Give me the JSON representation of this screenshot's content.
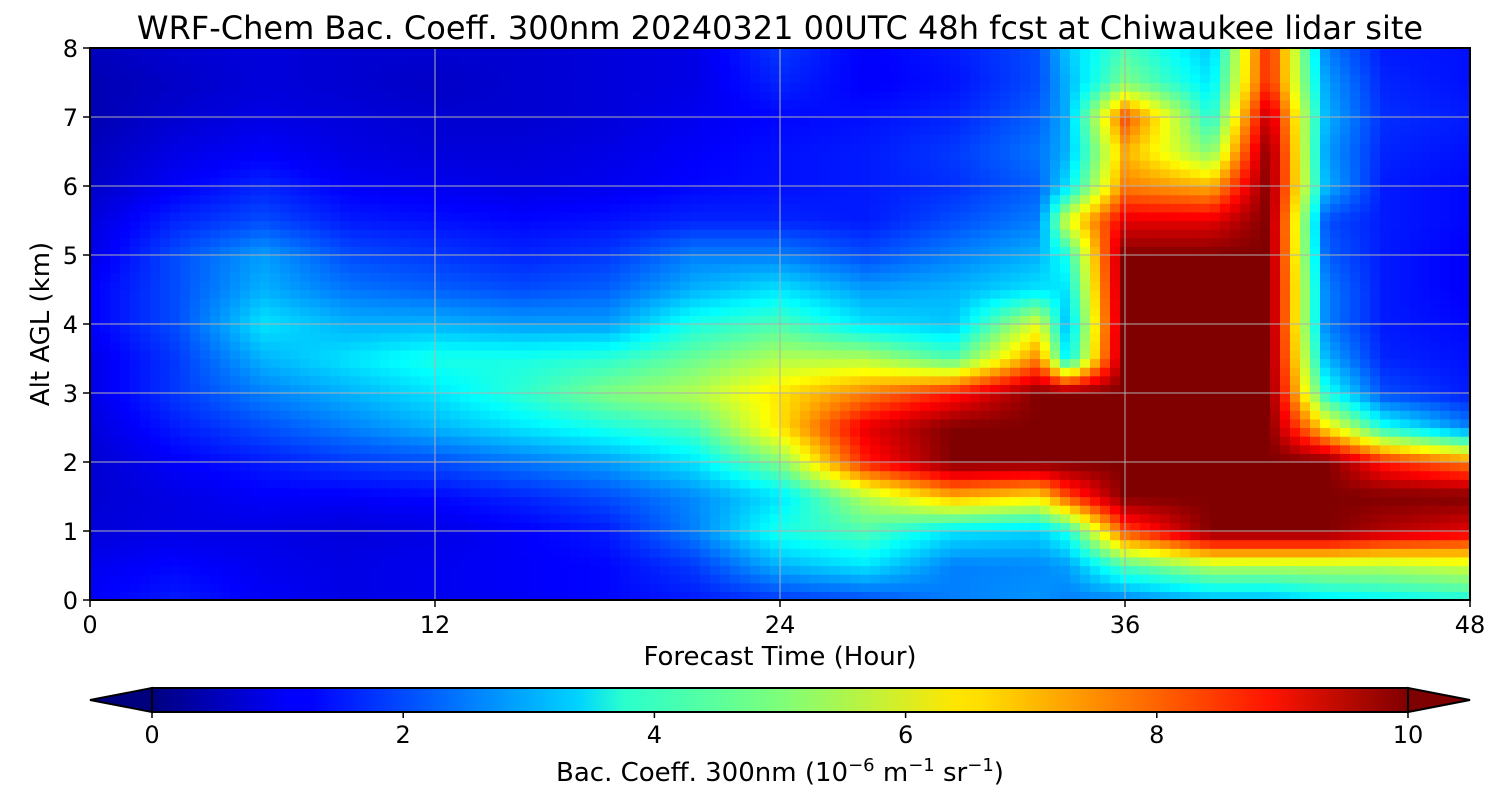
{
  "chart_data": {
    "type": "heatmap",
    "title": "WRF-Chem Bac. Coeff. 300nm  20240321 00UTC 48h fcst at Chiwaukee lidar site",
    "xlabel": "Forecast Time (Hour)",
    "ylabel": "Alt AGL (km)",
    "xlim": [
      0,
      48
    ],
    "ylim": [
      0,
      8
    ],
    "x_ticks": [
      "0",
      "12",
      "24",
      "36",
      "48"
    ],
    "y_ticks": [
      "0",
      "1",
      "2",
      "3",
      "4",
      "5",
      "6",
      "7",
      "8"
    ],
    "grid": true,
    "colorbar": {
      "label_prefix": "Bac. Coeff. 300nm  (10",
      "label_exp1": "−6",
      "label_mid": " m",
      "label_exp2": "−1",
      "label_mid2": " sr",
      "label_exp3": "−1",
      "label_suffix": ")",
      "ticks": [
        "0",
        "2",
        "4",
        "6",
        "8",
        "10"
      ],
      "range": [
        0,
        10
      ],
      "extend": "both",
      "colormap": "jet"
    },
    "x": [
      0,
      3,
      6,
      9,
      12,
      15,
      18,
      21,
      24,
      27,
      30,
      33,
      34,
      36,
      39,
      41,
      43,
      45,
      48
    ],
    "y": [
      0,
      0.5,
      1,
      1.5,
      2,
      2.5,
      3,
      3.5,
      4,
      4.5,
      5,
      5.5,
      6,
      6.5,
      7,
      7.5,
      8
    ],
    "z": [
      [
        1.2,
        1.5,
        1.2,
        1.0,
        1.1,
        1.2,
        1.3,
        1.5,
        1.8,
        2.0,
        2.5,
        2.7,
        2.5,
        2.5,
        3.0,
        3.0,
        3.5,
        3.7,
        4.0
      ],
      [
        1.1,
        1.3,
        1.1,
        1.0,
        1.1,
        1.2,
        1.3,
        1.8,
        3.0,
        3.5,
        2.5,
        2.6,
        2.8,
        4.5,
        5.5,
        5.5,
        5.5,
        5.5,
        5.8
      ],
      [
        0.9,
        1.0,
        1.0,
        0.9,
        1.0,
        1.2,
        1.5,
        2.5,
        4.0,
        4.5,
        3.5,
        3.3,
        4.0,
        8.0,
        10.0,
        10.0,
        10.0,
        9.5,
        9.0
      ],
      [
        0.8,
        1.0,
        1.2,
        1.2,
        1.3,
        1.6,
        2.0,
        2.6,
        3.5,
        5.5,
        7.0,
        6.5,
        8.0,
        10.0,
        10.0,
        10.0,
        10.0,
        10.0,
        10.0
      ],
      [
        0.8,
        1.2,
        1.5,
        1.8,
        2.0,
        2.4,
        2.8,
        3.5,
        5.0,
        8.5,
        10.0,
        10.0,
        10.0,
        10.0,
        10.0,
        10.0,
        10.0,
        8.5,
        7.5
      ],
      [
        0.9,
        1.5,
        2.0,
        2.5,
        3.0,
        3.5,
        4.0,
        4.5,
        6.5,
        9.0,
        10.0,
        10.0,
        10.0,
        10.0,
        10.0,
        10.0,
        6.5,
        4.0,
        2.5
      ],
      [
        1.0,
        1.8,
        2.5,
        3.0,
        3.5,
        4.2,
        5.0,
        5.5,
        6.5,
        7.5,
        8.5,
        10.0,
        10.0,
        10.0,
        10.0,
        10.0,
        4.0,
        2.0,
        1.5
      ],
      [
        1.0,
        1.8,
        3.0,
        3.5,
        4.0,
        4.0,
        4.2,
        4.8,
        5.5,
        5.5,
        4.5,
        7.5,
        3.5,
        10.0,
        10.0,
        10.0,
        3.0,
        1.6,
        1.4
      ],
      [
        1.2,
        2.0,
        3.5,
        3.0,
        3.0,
        2.8,
        2.8,
        4.0,
        4.5,
        3.5,
        3.2,
        6.0,
        3.0,
        10.0,
        10.0,
        10.0,
        2.5,
        1.5,
        1.3
      ],
      [
        1.2,
        2.0,
        3.0,
        2.4,
        2.2,
        2.0,
        2.2,
        3.0,
        3.5,
        2.8,
        3.0,
        3.5,
        3.5,
        10.0,
        10.0,
        10.0,
        2.5,
        1.5,
        1.2
      ],
      [
        1.0,
        2.0,
        2.8,
        2.0,
        1.8,
        1.6,
        1.8,
        2.5,
        2.5,
        2.0,
        2.5,
        3.0,
        4.0,
        10.0,
        10.0,
        10.0,
        2.2,
        1.5,
        1.2
      ],
      [
        0.9,
        1.6,
        2.0,
        1.5,
        1.4,
        1.3,
        1.4,
        1.6,
        1.6,
        1.5,
        2.0,
        2.5,
        6.0,
        9.0,
        9.0,
        10.0,
        2.0,
        1.5,
        1.3
      ],
      [
        0.7,
        1.2,
        1.6,
        1.2,
        1.1,
        1.0,
        1.1,
        1.3,
        1.4,
        1.5,
        1.7,
        2.2,
        3.5,
        7.5,
        7.0,
        10.0,
        3.0,
        1.5,
        1.3
      ],
      [
        0.6,
        1.0,
        1.2,
        1.0,
        0.9,
        0.9,
        1.0,
        1.2,
        1.4,
        1.5,
        1.8,
        2.4,
        3.0,
        7.0,
        5.0,
        10.0,
        2.8,
        1.6,
        1.4
      ],
      [
        0.5,
        0.8,
        1.0,
        0.9,
        0.8,
        0.8,
        0.9,
        1.1,
        1.3,
        1.4,
        1.6,
        2.2,
        3.0,
        8.0,
        4.0,
        9.5,
        3.0,
        1.7,
        1.5
      ],
      [
        0.5,
        0.7,
        0.9,
        0.8,
        0.7,
        0.8,
        0.9,
        1.0,
        1.6,
        1.2,
        1.4,
        2.0,
        3.0,
        5.0,
        3.5,
        8.5,
        2.8,
        1.6,
        1.4
      ],
      [
        0.6,
        0.8,
        0.9,
        0.8,
        0.8,
        0.8,
        0.9,
        1.0,
        1.8,
        1.2,
        1.5,
        2.0,
        3.2,
        4.5,
        3.2,
        8.5,
        2.5,
        1.5,
        1.4
      ]
    ]
  }
}
